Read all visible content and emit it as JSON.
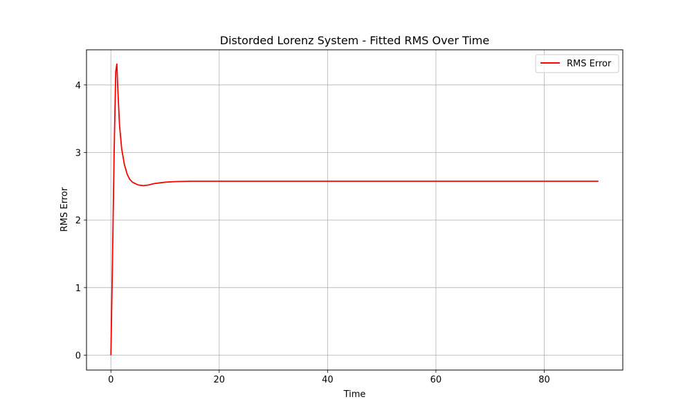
{
  "chart_data": {
    "type": "line",
    "title": "Distorded Lorenz System - Fitted RMS Over Time",
    "xlabel": "Time",
    "ylabel": "RMS Error",
    "xlim": [
      -4.5,
      94.5
    ],
    "ylim": [
      -0.22,
      4.52
    ],
    "xticks": [
      0,
      20,
      40,
      60,
      80
    ],
    "yticks": [
      0,
      1,
      2,
      3,
      4
    ],
    "grid": true,
    "legend_position": "top-right",
    "series": [
      {
        "name": "RMS Error",
        "color": "#ff0000",
        "x": [
          0,
          0.3,
          0.6,
          0.9,
          1.1,
          1.3,
          1.6,
          2.0,
          2.5,
          3.0,
          3.5,
          4.0,
          5.0,
          6.0,
          7.0,
          8.0,
          10.0,
          12.0,
          15.0,
          20.0,
          30.0,
          40.0,
          50.0,
          60.0,
          70.0,
          80.0,
          90.0
        ],
        "y": [
          0,
          1.4,
          3.0,
          4.2,
          4.31,
          3.9,
          3.4,
          3.05,
          2.82,
          2.68,
          2.6,
          2.56,
          2.52,
          2.51,
          2.52,
          2.54,
          2.56,
          2.57,
          2.575,
          2.575,
          2.575,
          2.575,
          2.575,
          2.575,
          2.575,
          2.575,
          2.575
        ]
      }
    ]
  }
}
